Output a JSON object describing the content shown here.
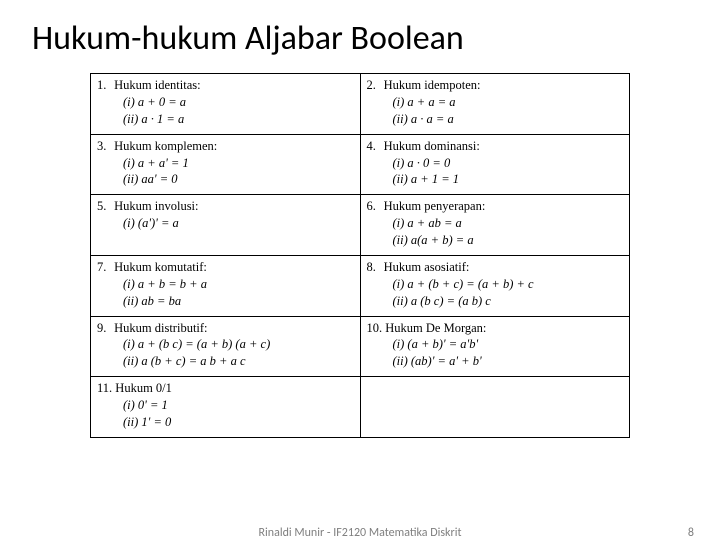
{
  "title": "Hukum-hukum Aljabar Boolean",
  "footer": {
    "center": "Rinaldi Munir - IF2120  Matematika Diskrit",
    "page": "8"
  },
  "laws": [
    [
      {
        "num": "1.",
        "name": "Hukum identitas:",
        "eqs": [
          "(i)   a + 0 = a",
          "(ii)  a · 1 = a"
        ]
      },
      {
        "num": "2.",
        "name": "Hukum idempoten:",
        "eqs": [
          "(i)   a + a = a",
          "(ii)  a · a = a"
        ]
      }
    ],
    [
      {
        "num": "3.",
        "name": "Hukum komplemen:",
        "eqs": [
          "(i)   a + a' = 1",
          "(ii)  aa' = 0"
        ]
      },
      {
        "num": "4.",
        "name": "Hukum dominansi:",
        "eqs": [
          "(i)   a · 0  = 0",
          "(ii)  a + 1 = 1"
        ]
      }
    ],
    [
      {
        "num": "5.",
        "name": "Hukum involusi:",
        "eqs": [
          "(i)   (a')' = a"
        ]
      },
      {
        "num": "6.",
        "name": "Hukum penyerapan:",
        "eqs": [
          "(i)   a + ab = a",
          "(ii)  a(a + b) = a"
        ]
      }
    ],
    [
      {
        "num": "7.",
        "name": "Hukum komutatif:",
        "eqs": [
          "(i)   a + b = b + a",
          "(ii)  ab = ba"
        ]
      },
      {
        "num": "8.",
        "name": "Hukum asosiatif:",
        "eqs": [
          "(i)   a + (b + c) = (a + b) + c",
          "(ii)  a (b c) = (a b) c"
        ]
      }
    ],
    [
      {
        "num": "9.",
        "name": "Hukum distributif:",
        "eqs": [
          "(i)   a + (b c) = (a + b) (a + c)",
          "(ii)  a (b + c) = a b + a c"
        ]
      },
      {
        "num": "10.",
        "name": "Hukum De Morgan:",
        "eqs": [
          "(i)   (a + b)' = a'b'",
          "(ii)  (ab)' = a' + b'"
        ]
      }
    ],
    [
      {
        "num": "11.",
        "name": "Hukum 0/1",
        "eqs": [
          "(i)   0' = 1",
          "(ii)  1' = 0"
        ]
      },
      null
    ]
  ]
}
